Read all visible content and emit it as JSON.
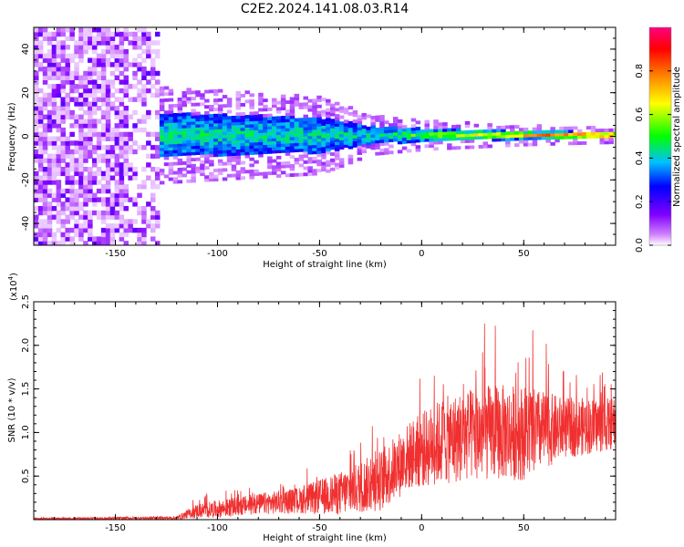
{
  "title": "C2E2.2024.141.08.03.R14",
  "chart_data": [
    {
      "type": "heatmap",
      "xlabel": "Height of straight line (km)",
      "ylabel": "Frequency (Hz)",
      "xlim": [
        -190,
        95
      ],
      "ylim": [
        -50,
        50
      ],
      "x_ticks": [
        "-150",
        "-100",
        "-50",
        "0",
        "50"
      ],
      "y_ticks": [
        "-40",
        "-20",
        "0",
        "20",
        "40"
      ],
      "colorbar": {
        "label": "Normalized spectral amplitude",
        "range": [
          0,
          1
        ],
        "ticks": [
          "0.0",
          "0.2",
          "0.4",
          "0.6",
          "0.8"
        ],
        "colors": [
          "#ffffff",
          "#8000ff",
          "#0000ff",
          "#00c0ff",
          "#00ff00",
          "#ffff00",
          "#ff8000",
          "#ff0000",
          "#ff0080"
        ]
      },
      "description_free": true,
      "noise_region_x": [
        -190,
        -130
      ],
      "signal_band_halfwidth_hz": [
        [
          -130,
          10
        ],
        [
          -50,
          8
        ],
        [
          -25,
          4
        ],
        [
          0,
          3
        ],
        [
          50,
          2
        ],
        [
          95,
          1.5
        ]
      ]
    },
    {
      "type": "line",
      "xlabel": "Height of straight line (km)",
      "ylabel": "SNR (10 * v/v)",
      "y_multiplier": "(x10",
      "y_multiplier_exp": "4",
      "y_multiplier_close": ")",
      "xlim": [
        -190,
        95
      ],
      "ylim": [
        0,
        2.5
      ],
      "x_ticks": [
        "-150",
        "-100",
        "-50",
        "0",
        "50"
      ],
      "y_ticks": [
        "0.5",
        "1.0",
        "1.5",
        "2.0",
        "2.5"
      ],
      "series_color": "#f03030",
      "envelope_x": [
        -190,
        -120,
        -110,
        -100,
        -80,
        -60,
        -40,
        -20,
        -5,
        10,
        30,
        50,
        70,
        95
      ],
      "envelope_mean": [
        0.01,
        0.02,
        0.1,
        0.12,
        0.18,
        0.22,
        0.3,
        0.45,
        0.75,
        0.9,
        1.0,
        1.0,
        1.05,
        1.1
      ],
      "envelope_spread": [
        0.01,
        0.02,
        0.08,
        0.1,
        0.12,
        0.15,
        0.25,
        0.35,
        0.4,
        0.5,
        0.55,
        0.55,
        0.35,
        0.3
      ]
    }
  ]
}
